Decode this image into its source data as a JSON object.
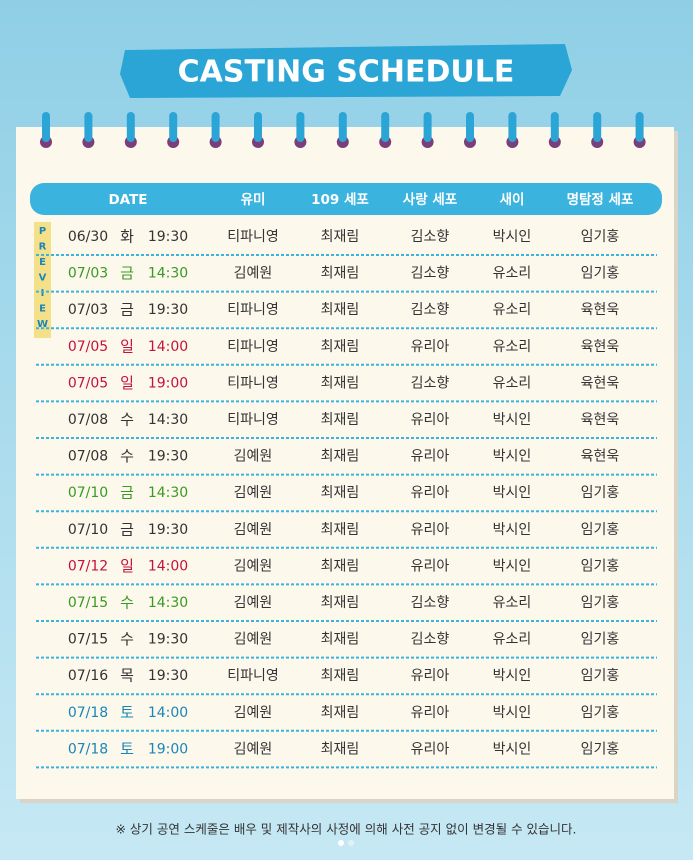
{
  "header": {
    "title": "CASTING SCHEDULE"
  },
  "preview": "PREVIEW",
  "table": {
    "columns": [
      "DATE",
      "유미",
      "109 세포",
      "사랑 세포",
      "새이",
      "명탐정 세포"
    ],
    "rows": [
      {
        "date": "06/30",
        "day": "화",
        "time": "19:30",
        "cast": [
          "티파니영",
          "최재림",
          "김소향",
          "박시인",
          "임기홍"
        ],
        "color": "#333333"
      },
      {
        "date": "07/03",
        "day": "금",
        "time": "14:30",
        "cast": [
          "김예원",
          "최재림",
          "김소향",
          "유소리",
          "임기홍"
        ],
        "color": "#3a9a24"
      },
      {
        "date": "07/03",
        "day": "금",
        "time": "19:30",
        "cast": [
          "티파니영",
          "최재림",
          "김소향",
          "유소리",
          "육현욱"
        ],
        "color": "#333333"
      },
      {
        "date": "07/05",
        "day": "일",
        "time": "14:00",
        "cast": [
          "티파니영",
          "최재림",
          "유리아",
          "유소리",
          "육현욱"
        ],
        "color": "#c4133a"
      },
      {
        "date": "07/05",
        "day": "일",
        "time": "19:00",
        "cast": [
          "티파니영",
          "최재림",
          "김소향",
          "유소리",
          "육현욱"
        ],
        "color": "#c4133a"
      },
      {
        "date": "07/08",
        "day": "수",
        "time": "14:30",
        "cast": [
          "티파니영",
          "최재림",
          "유리아",
          "박시인",
          "육현욱"
        ],
        "color": "#333333"
      },
      {
        "date": "07/08",
        "day": "수",
        "time": "19:30",
        "cast": [
          "김예원",
          "최재림",
          "유리아",
          "박시인",
          "육현욱"
        ],
        "color": "#333333"
      },
      {
        "date": "07/10",
        "day": "금",
        "time": "14:30",
        "cast": [
          "김예원",
          "최재림",
          "유리아",
          "박시인",
          "임기홍"
        ],
        "color": "#3a9a24"
      },
      {
        "date": "07/10",
        "day": "금",
        "time": "19:30",
        "cast": [
          "김예원",
          "최재림",
          "유리아",
          "박시인",
          "임기홍"
        ],
        "color": "#333333"
      },
      {
        "date": "07/12",
        "day": "일",
        "time": "14:00",
        "cast": [
          "김예원",
          "최재림",
          "유리아",
          "박시인",
          "임기홍"
        ],
        "color": "#c4133a"
      },
      {
        "date": "07/15",
        "day": "수",
        "time": "14:30",
        "cast": [
          "김예원",
          "최재림",
          "김소향",
          "유소리",
          "임기홍"
        ],
        "color": "#3a9a24"
      },
      {
        "date": "07/15",
        "day": "수",
        "time": "19:30",
        "cast": [
          "김예원",
          "최재림",
          "김소향",
          "유소리",
          "임기홍"
        ],
        "color": "#333333"
      },
      {
        "date": "07/16",
        "day": "목",
        "time": "19:30",
        "cast": [
          "티파니영",
          "최재림",
          "유리아",
          "박시인",
          "임기홍"
        ],
        "color": "#333333"
      },
      {
        "date": "07/18",
        "day": "토",
        "time": "14:00",
        "cast": [
          "김예원",
          "최재림",
          "유리아",
          "박시인",
          "임기홍"
        ],
        "color": "#1a86b8"
      },
      {
        "date": "07/18",
        "day": "토",
        "time": "19:00",
        "cast": [
          "김예원",
          "최재림",
          "유리아",
          "박시인",
          "임기홍"
        ],
        "color": "#1a86b8"
      }
    ]
  },
  "footnote": "※ 상기 공연 스케줄은 배우 및 제작사의 사정에 의해 사전 공지 없이 변경될 수 있습니다."
}
